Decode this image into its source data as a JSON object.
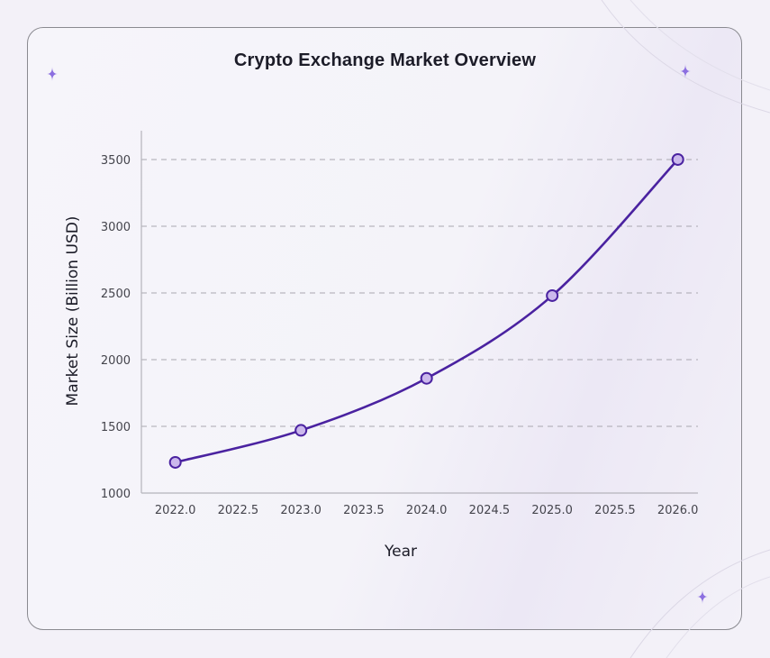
{
  "chart_data": {
    "type": "line",
    "title": "Crypto Exchange Market Overview",
    "xlabel": "Year",
    "ylabel": "Market Size (Billion USD)",
    "x": [
      2022,
      2023,
      2024,
      2025,
      2026
    ],
    "series": [
      {
        "values": [
          1230,
          1470,
          1860,
          2480,
          3500
        ]
      }
    ],
    "xlim": [
      2021.73,
      2026.16
    ],
    "ylim": [
      1000,
      3716
    ],
    "xticks": [
      "2022.0",
      "2022.5",
      "2023.0",
      "2023.5",
      "2024.0",
      "2024.5",
      "2025.0",
      "2025.5",
      "2026.0"
    ],
    "xtick_values": [
      2022,
      2022.5,
      2023,
      2023.5,
      2024,
      2024.5,
      2025,
      2025.5,
      2026
    ],
    "yticks": [
      "1000",
      "1500",
      "2000",
      "2500",
      "3000",
      "3500"
    ],
    "ytick_values": [
      1000,
      1500,
      2000,
      2500,
      3000,
      3500
    ],
    "grid": "horizontal dashed",
    "line_color": "#4a22a0",
    "marker_fill": "#cbb8ec",
    "smooth": true
  },
  "decor": {
    "sparkle_color": "#8c6fe0",
    "sparkle_icon": "sparkle-icon"
  }
}
